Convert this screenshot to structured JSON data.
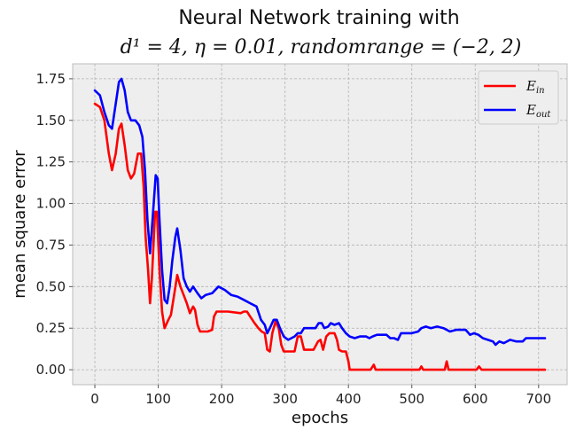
{
  "chart_data": {
    "type": "line",
    "title": "Neural Network training with",
    "subtitle": "d¹ = 4, η = 0.01, randomrange = (−2, 2)",
    "xlabel": "epochs",
    "ylabel": "mean square error",
    "xlim": [
      -35,
      745
    ],
    "ylim": [
      -0.09,
      1.84
    ],
    "xticks": [
      0,
      100,
      200,
      300,
      400,
      500,
      600,
      700
    ],
    "yticks": [
      0.0,
      0.25,
      0.5,
      0.75,
      1.0,
      1.25,
      1.5,
      1.75
    ],
    "ytick_labels": [
      "0.00",
      "0.25",
      "0.50",
      "0.75",
      "1.00",
      "1.25",
      "1.50",
      "1.75"
    ],
    "grid": true,
    "legend": "top-right",
    "series": [
      {
        "name": "E_in",
        "label_main": "E",
        "label_sub": "in",
        "color": "#ff0000",
        "points": [
          [
            0,
            1.6
          ],
          [
            8,
            1.58
          ],
          [
            15,
            1.5
          ],
          [
            22,
            1.3
          ],
          [
            27,
            1.2
          ],
          [
            33,
            1.3
          ],
          [
            38,
            1.45
          ],
          [
            42,
            1.48
          ],
          [
            47,
            1.35
          ],
          [
            52,
            1.2
          ],
          [
            57,
            1.15
          ],
          [
            62,
            1.18
          ],
          [
            68,
            1.3
          ],
          [
            73,
            1.3
          ],
          [
            77,
            1.1
          ],
          [
            80,
            0.8
          ],
          [
            84,
            0.6
          ],
          [
            87,
            0.4
          ],
          [
            90,
            0.55
          ],
          [
            95,
            0.95
          ],
          [
            98,
            0.95
          ],
          [
            102,
            0.6
          ],
          [
            106,
            0.35
          ],
          [
            110,
            0.25
          ],
          [
            116,
            0.3
          ],
          [
            120,
            0.33
          ],
          [
            125,
            0.45
          ],
          [
            130,
            0.57
          ],
          [
            135,
            0.5
          ],
          [
            140,
            0.45
          ],
          [
            145,
            0.4
          ],
          [
            150,
            0.34
          ],
          [
            155,
            0.38
          ],
          [
            158,
            0.36
          ],
          [
            162,
            0.27
          ],
          [
            166,
            0.23
          ],
          [
            172,
            0.23
          ],
          [
            178,
            0.23
          ],
          [
            185,
            0.24
          ],
          [
            188,
            0.32
          ],
          [
            192,
            0.35
          ],
          [
            210,
            0.35
          ],
          [
            230,
            0.34
          ],
          [
            235,
            0.35
          ],
          [
            240,
            0.35
          ],
          [
            245,
            0.32
          ],
          [
            252,
            0.28
          ],
          [
            258,
            0.25
          ],
          [
            263,
            0.23
          ],
          [
            268,
            0.22
          ],
          [
            272,
            0.12
          ],
          [
            276,
            0.11
          ],
          [
            280,
            0.22
          ],
          [
            285,
            0.29
          ],
          [
            290,
            0.25
          ],
          [
            294,
            0.15
          ],
          [
            298,
            0.11
          ],
          [
            305,
            0.11
          ],
          [
            315,
            0.11
          ],
          [
            320,
            0.2
          ],
          [
            325,
            0.2
          ],
          [
            330,
            0.12
          ],
          [
            345,
            0.12
          ],
          [
            352,
            0.17
          ],
          [
            356,
            0.18
          ],
          [
            360,
            0.12
          ],
          [
            365,
            0.2
          ],
          [
            370,
            0.22
          ],
          [
            378,
            0.22
          ],
          [
            382,
            0.18
          ],
          [
            385,
            0.12
          ],
          [
            390,
            0.11
          ],
          [
            396,
            0.11
          ],
          [
            400,
            0.05
          ],
          [
            402,
            0.0
          ],
          [
            435,
            0.0
          ],
          [
            440,
            0.03
          ],
          [
            443,
            0.0
          ],
          [
            512,
            0.0
          ],
          [
            515,
            0.02
          ],
          [
            518,
            0.0
          ],
          [
            552,
            0.0
          ],
          [
            555,
            0.05
          ],
          [
            558,
            0.0
          ],
          [
            602,
            0.0
          ],
          [
            606,
            0.02
          ],
          [
            610,
            0.0
          ],
          [
            710,
            0.0
          ]
        ]
      },
      {
        "name": "E_out",
        "label_main": "E",
        "label_sub": "out",
        "color": "#0000ff",
        "points": [
          [
            0,
            1.68
          ],
          [
            8,
            1.65
          ],
          [
            15,
            1.55
          ],
          [
            22,
            1.47
          ],
          [
            27,
            1.45
          ],
          [
            33,
            1.6
          ],
          [
            38,
            1.73
          ],
          [
            42,
            1.75
          ],
          [
            47,
            1.68
          ],
          [
            52,
            1.55
          ],
          [
            57,
            1.5
          ],
          [
            64,
            1.5
          ],
          [
            70,
            1.47
          ],
          [
            75,
            1.4
          ],
          [
            79,
            1.2
          ],
          [
            83,
            0.9
          ],
          [
            87,
            0.7
          ],
          [
            91,
            0.9
          ],
          [
            96,
            1.17
          ],
          [
            99,
            1.15
          ],
          [
            102,
            0.9
          ],
          [
            106,
            0.6
          ],
          [
            110,
            0.42
          ],
          [
            114,
            0.4
          ],
          [
            118,
            0.5
          ],
          [
            122,
            0.65
          ],
          [
            127,
            0.8
          ],
          [
            130,
            0.85
          ],
          [
            135,
            0.72
          ],
          [
            140,
            0.55
          ],
          [
            145,
            0.5
          ],
          [
            150,
            0.47
          ],
          [
            155,
            0.5
          ],
          [
            162,
            0.46
          ],
          [
            168,
            0.43
          ],
          [
            175,
            0.45
          ],
          [
            185,
            0.46
          ],
          [
            195,
            0.5
          ],
          [
            205,
            0.48
          ],
          [
            215,
            0.45
          ],
          [
            225,
            0.44
          ],
          [
            235,
            0.42
          ],
          [
            245,
            0.4
          ],
          [
            255,
            0.38
          ],
          [
            262,
            0.3
          ],
          [
            268,
            0.27
          ],
          [
            272,
            0.22
          ],
          [
            276,
            0.25
          ],
          [
            282,
            0.3
          ],
          [
            287,
            0.3
          ],
          [
            292,
            0.25
          ],
          [
            298,
            0.2
          ],
          [
            305,
            0.18
          ],
          [
            315,
            0.2
          ],
          [
            320,
            0.22
          ],
          [
            325,
            0.22
          ],
          [
            330,
            0.25
          ],
          [
            340,
            0.25
          ],
          [
            348,
            0.25
          ],
          [
            353,
            0.28
          ],
          [
            358,
            0.28
          ],
          [
            362,
            0.25
          ],
          [
            368,
            0.26
          ],
          [
            372,
            0.28
          ],
          [
            378,
            0.27
          ],
          [
            385,
            0.28
          ],
          [
            390,
            0.25
          ],
          [
            396,
            0.22
          ],
          [
            402,
            0.2
          ],
          [
            410,
            0.19
          ],
          [
            418,
            0.2
          ],
          [
            428,
            0.2
          ],
          [
            433,
            0.19
          ],
          [
            438,
            0.2
          ],
          [
            445,
            0.21
          ],
          [
            460,
            0.21
          ],
          [
            466,
            0.19
          ],
          [
            472,
            0.19
          ],
          [
            478,
            0.18
          ],
          [
            483,
            0.22
          ],
          [
            490,
            0.22
          ],
          [
            500,
            0.22
          ],
          [
            510,
            0.23
          ],
          [
            515,
            0.25
          ],
          [
            522,
            0.26
          ],
          [
            530,
            0.25
          ],
          [
            540,
            0.26
          ],
          [
            550,
            0.25
          ],
          [
            560,
            0.23
          ],
          [
            570,
            0.24
          ],
          [
            585,
            0.24
          ],
          [
            592,
            0.21
          ],
          [
            598,
            0.22
          ],
          [
            605,
            0.21
          ],
          [
            612,
            0.19
          ],
          [
            620,
            0.18
          ],
          [
            628,
            0.17
          ],
          [
            632,
            0.15
          ],
          [
            638,
            0.17
          ],
          [
            645,
            0.16
          ],
          [
            655,
            0.18
          ],
          [
            665,
            0.17
          ],
          [
            675,
            0.17
          ],
          [
            680,
            0.19
          ],
          [
            695,
            0.19
          ],
          [
            710,
            0.19
          ]
        ]
      }
    ]
  }
}
